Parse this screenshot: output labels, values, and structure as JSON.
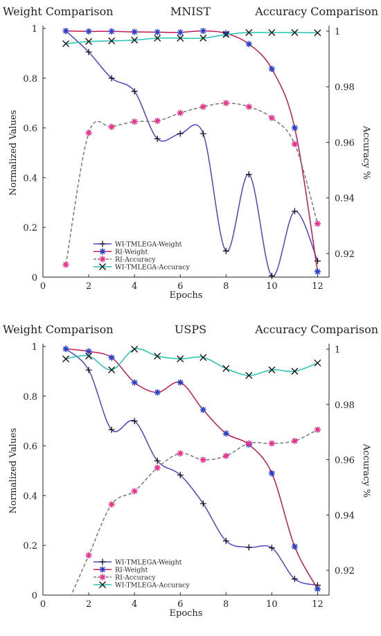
{
  "chart_data": [
    {
      "type": "line",
      "title": "MNIST",
      "left_title": "Weight Comparison",
      "right_title": "Accuracy Comparison",
      "xlabel": "Epochs",
      "ylabel": "Normalized Values",
      "y2label": "Accuracy %",
      "xlim": [
        0,
        12.5
      ],
      "ylim": [
        0,
        1
      ],
      "y2lim": [
        0.9115,
        1.001
      ],
      "xticks": [
        0,
        2,
        4,
        6,
        8,
        10,
        12
      ],
      "yticks": [
        0,
        0.2,
        0.4,
        0.6,
        0.8,
        1
      ],
      "y2ticks": [
        0.92,
        0.94,
        0.96,
        0.98,
        1
      ],
      "legend_position": "bottom-left",
      "series": [
        {
          "name": "WI-TMLEGA-Weight",
          "axis": "left",
          "color": "#4a45c8",
          "dash": "solid",
          "marker": "plus",
          "x": [
            1,
            2,
            3,
            4,
            5,
            6,
            7,
            8,
            9,
            10,
            11,
            12
          ],
          "y": [
            0.99,
            0.905,
            0.8,
            0.747,
            0.556,
            0.577,
            0.577,
            0.105,
            0.413,
            0.005,
            0.265,
            0.065
          ]
        },
        {
          "name": "RI-Weight",
          "axis": "left",
          "color": "#c2184f",
          "dash": "solid",
          "marker": "asterisk",
          "x": [
            1,
            2,
            3,
            4,
            5,
            6,
            7,
            8,
            9,
            10,
            11,
            12
          ],
          "y": [
            0.99,
            0.988,
            0.988,
            0.986,
            0.985,
            0.984,
            0.99,
            0.98,
            0.937,
            0.837,
            0.6,
            0.022
          ]
        },
        {
          "name": "RI-Accuracy",
          "axis": "left",
          "color": "#777777",
          "dash": "dashed",
          "marker": "asterisk-pink",
          "x": [
            1,
            2,
            3,
            4,
            5,
            6,
            7,
            8,
            9,
            10,
            11,
            12
          ],
          "y": [
            0.05,
            0.58,
            0.604,
            0.625,
            0.628,
            0.66,
            0.685,
            0.7,
            0.685,
            0.64,
            0.535,
            0.215
          ]
        },
        {
          "name": "WI-TMLEGA-Accuracy",
          "axis": "right",
          "color": "#22c2b4",
          "dash": "solid",
          "marker": "cross",
          "x": [
            1,
            2,
            3,
            4,
            5,
            6,
            7,
            8,
            9,
            10,
            11,
            12
          ],
          "y": [
            0.9955,
            0.9963,
            0.9965,
            0.9968,
            0.9975,
            0.9975,
            0.9975,
            0.9988,
            0.9995,
            0.9995,
            0.9995,
            0.9994
          ]
        }
      ]
    },
    {
      "type": "line",
      "title": "USPS",
      "left_title": "Weight Comparison",
      "right_title": "Accuracy Comparison",
      "xlabel": "Epochs",
      "ylabel": "Normalized Values",
      "y2label": "Accuracy %",
      "xlim": [
        0,
        12.5
      ],
      "ylim": [
        0,
        1
      ],
      "y2lim": [
        0.911,
        1.001
      ],
      "xticks": [
        0,
        2,
        4,
        6,
        8,
        10,
        12
      ],
      "yticks": [
        0,
        0.2,
        0.4,
        0.6,
        0.8,
        1
      ],
      "y2ticks": [
        0.92,
        0.94,
        0.96,
        0.98,
        1
      ],
      "legend_position": "bottom-left",
      "series": [
        {
          "name": "WI-TMLEGA-Weight",
          "axis": "left",
          "color": "#4a45c8",
          "dash": "solid",
          "marker": "plus",
          "x": [
            1,
            2,
            3,
            4,
            5,
            6,
            7,
            8,
            9,
            10,
            11,
            12
          ],
          "y": [
            0.99,
            0.905,
            0.665,
            0.7,
            0.54,
            0.483,
            0.368,
            0.218,
            0.192,
            0.19,
            0.065,
            0.04
          ]
        },
        {
          "name": "RI-Weight",
          "axis": "left",
          "color": "#c2184f",
          "dash": "solid",
          "marker": "asterisk",
          "x": [
            1,
            2,
            3,
            4,
            5,
            6,
            7,
            8,
            9,
            10,
            11,
            12
          ],
          "y": [
            0.99,
            0.98,
            0.955,
            0.855,
            0.815,
            0.855,
            0.745,
            0.65,
            0.605,
            0.49,
            0.195,
            0.025
          ]
        },
        {
          "name": "RI-Accuracy",
          "axis": "left",
          "color": "#777777",
          "dash": "dashed",
          "marker": "asterisk-pink",
          "x": [
            1,
            2,
            3,
            4,
            5,
            6,
            7,
            8,
            9,
            10,
            11,
            12
          ],
          "y": [
            -0.05,
            0.16,
            0.365,
            0.418,
            0.512,
            0.57,
            0.544,
            0.56,
            0.61,
            0.61,
            0.62,
            0.665
          ]
        },
        {
          "name": "WI-TMLEGA-Accuracy",
          "axis": "right",
          "color": "#22c2b4",
          "dash": "solid",
          "marker": "cross",
          "x": [
            1,
            2,
            3,
            4,
            5,
            6,
            7,
            8,
            9,
            10,
            11,
            12
          ],
          "y": [
            0.9965,
            0.9975,
            0.9925,
            1.0,
            0.9975,
            0.9965,
            0.997,
            0.993,
            0.9905,
            0.9925,
            0.992,
            0.995
          ]
        }
      ]
    }
  ]
}
